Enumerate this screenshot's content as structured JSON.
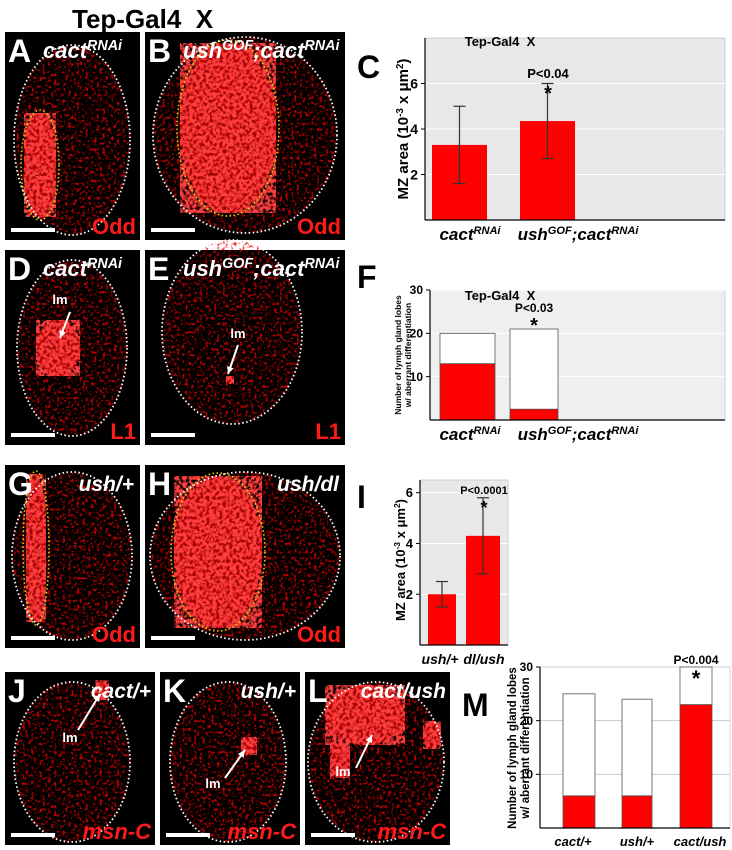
{
  "title": "Tep-Gal4  X",
  "images": [
    {
      "letter": "A",
      "label": [
        {
          "text": "cact"
        },
        {
          "text": "RNAi",
          "sup": true
        }
      ],
      "stain": "Odd"
    },
    {
      "letter": "B",
      "label": [
        {
          "text": "ush"
        },
        {
          "text": "GOF",
          "sup": true
        },
        {
          "text": ";cact"
        },
        {
          "text": "RNAi",
          "sup": true
        }
      ],
      "stain": "Odd"
    },
    {
      "letter": "D",
      "label": [
        {
          "text": "cact"
        },
        {
          "text": "RNAi",
          "sup": true
        }
      ],
      "stain": "L1",
      "arrow": "lm"
    },
    {
      "letter": "E",
      "label": [
        {
          "text": "ush"
        },
        {
          "text": "GOF",
          "sup": true
        },
        {
          "text": ";cact"
        },
        {
          "text": "RNAi",
          "sup": true
        }
      ],
      "stain": "L1",
      "arrow": "lm"
    },
    {
      "letter": "G",
      "label": [
        {
          "text": "ush/+"
        }
      ],
      "stain": "Odd"
    },
    {
      "letter": "H",
      "label": [
        {
          "text": "ush/dl"
        }
      ],
      "stain": "Odd"
    },
    {
      "letter": "J",
      "label": [
        {
          "text": "cact/+"
        }
      ],
      "stain": "msn-C",
      "arrow": "lm"
    },
    {
      "letter": "K",
      "label": [
        {
          "text": "ush/+"
        }
      ],
      "stain": "msn-C",
      "arrow": "lm"
    },
    {
      "letter": "L",
      "label": [
        {
          "text": "cact/ush"
        }
      ],
      "stain": "msn-C",
      "arrow": "lm"
    }
  ],
  "chart_data": [
    {
      "letter": "C",
      "type": "bar",
      "title": "Tep-Gal4  X",
      "y_label": [
        [
          {
            "text": "MZ area (10"
          },
          {
            "text": "-3",
            "sup": true
          },
          {
            "text": " x μm"
          },
          {
            "text": "2",
            "sup": true
          },
          {
            "text": ")"
          }
        ]
      ],
      "categories": [
        [
          {
            "text": "cact"
          },
          {
            "text": "RNAi",
            "sup": true
          }
        ],
        [
          {
            "text": "ush"
          },
          {
            "text": "GOF",
            "sup": true
          },
          {
            "text": ";cact"
          },
          {
            "text": "RNAi",
            "sup": true
          }
        ]
      ],
      "values": [
        3.3,
        4.35
      ],
      "errors": [
        1.7,
        1.65
      ],
      "color": "#ff0000",
      "ylim": [
        0,
        8
      ],
      "yticks": [
        2,
        4,
        6
      ],
      "grid": true,
      "annotations": [
        "P<0.04",
        "*"
      ]
    },
    {
      "letter": "F",
      "type": "stacked_bar",
      "title": "Tep-Gal4  X",
      "y_label": [
        [
          {
            "text": "Number of lymph gland lobes"
          }
        ],
        [
          {
            "text": "w/ aberrant differentiation"
          }
        ]
      ],
      "categories": [
        [
          {
            "text": "cact"
          },
          {
            "text": "RNAi",
            "sup": true
          }
        ],
        [
          {
            "text": "ush"
          },
          {
            "text": "GOF",
            "sup": true
          },
          {
            "text": ";cact"
          },
          {
            "text": "RNAi",
            "sup": true
          }
        ]
      ],
      "series": [
        {
          "color": "#ff0000",
          "values": [
            13,
            2.5
          ]
        },
        {
          "color": "#ffffff",
          "values": [
            7,
            18.5
          ]
        }
      ],
      "ylim": [
        0,
        30
      ],
      "yticks": [
        10,
        20,
        30
      ],
      "grid": true,
      "annotations": [
        "P<0.03",
        "*"
      ]
    },
    {
      "letter": "I",
      "type": "bar",
      "y_label": [
        [
          {
            "text": "MZ area (10"
          },
          {
            "text": "-3",
            "sup": true
          },
          {
            "text": " x μm"
          },
          {
            "text": "2",
            "sup": true
          },
          {
            "text": ")"
          }
        ]
      ],
      "categories": [
        [
          {
            "text": "ush/+"
          }
        ],
        [
          {
            "text": "dl/ush"
          }
        ]
      ],
      "values": [
        2.0,
        4.3
      ],
      "errors": [
        0.5,
        1.5
      ],
      "color": "#ff0000",
      "ylim": [
        0,
        6.5
      ],
      "yticks": [
        2,
        4,
        6
      ],
      "grid": true,
      "annotations": [
        "P<0.0001",
        "*"
      ]
    },
    {
      "letter": "M",
      "type": "stacked_bar",
      "y_label": [
        [
          {
            "text": "Number of lymph gland lobes"
          }
        ],
        [
          {
            "text": "w/ aberrant differentiation"
          }
        ]
      ],
      "categories": [
        [
          {
            "text": "cact/+"
          }
        ],
        [
          {
            "text": "ush/+"
          }
        ],
        [
          {
            "text": "cact/ush"
          }
        ]
      ],
      "series": [
        {
          "color": "#ff0000",
          "values": [
            6,
            6,
            23
          ]
        },
        {
          "color": "#ffffff",
          "values": [
            19,
            18,
            7
          ]
        }
      ],
      "ylim": [
        0,
        30
      ],
      "yticks": [
        10,
        20,
        30
      ],
      "grid": true,
      "annotations": [
        "P<0.004",
        "*"
      ]
    }
  ]
}
